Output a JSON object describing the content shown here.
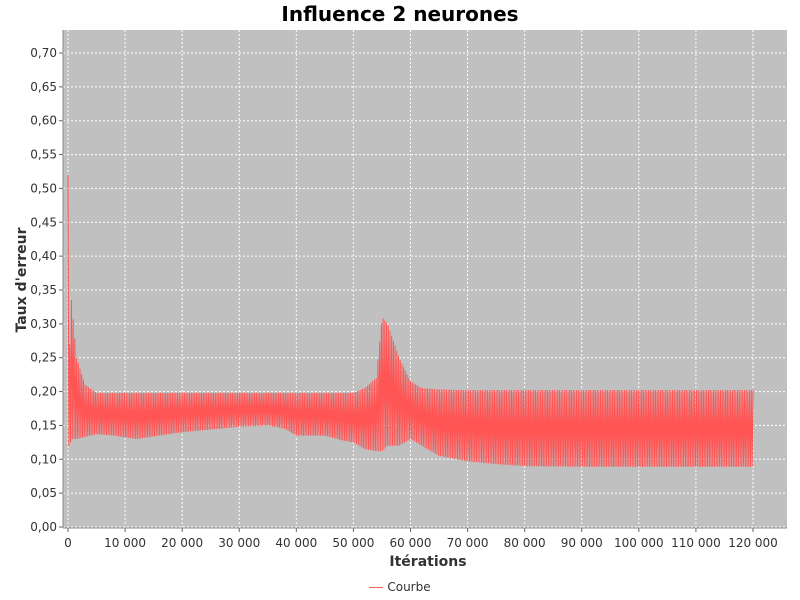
{
  "chart_data": {
    "type": "line",
    "title": "Influence 2 neurones",
    "xlabel": "Itérations",
    "ylabel": "Taux d'erreur",
    "xlim": [
      0,
      125000
    ],
    "ylim": [
      0,
      0.72
    ],
    "x_ticks": [
      "0",
      "10 000",
      "20 000",
      "30 000",
      "40 000",
      "50 000",
      "60 000",
      "70 000",
      "80 000",
      "90 000",
      "100 000",
      "110 000",
      "120 000"
    ],
    "y_ticks": [
      "0,00",
      "0,05",
      "0,10",
      "0,15",
      "0,20",
      "0,25",
      "0,30",
      "0,35",
      "0,40",
      "0,45",
      "0,50",
      "0,55",
      "0,60",
      "0,65",
      "0,70"
    ],
    "grid": true,
    "legend_position": "bottom",
    "plot_background": "#c0c0c0",
    "series": [
      {
        "name": "Courbe",
        "color": "#ff5555",
        "description": "oscillating error rate; values given as lower/upper envelope",
        "envelope": {
          "x": [
            0,
            300,
            600,
            1500,
            3000,
            5000,
            8000,
            12000,
            20000,
            30000,
            35000,
            38000,
            40000,
            45000,
            48000,
            50000,
            52000,
            54000,
            55000,
            56000,
            58000,
            60000,
            62000,
            65000,
            70000,
            75000,
            80000,
            90000,
            100000,
            110000,
            120000
          ],
          "lower": [
            0.12,
            0.12,
            0.13,
            0.13,
            0.133,
            0.137,
            0.135,
            0.13,
            0.14,
            0.148,
            0.15,
            0.145,
            0.135,
            0.135,
            0.128,
            0.125,
            0.115,
            0.112,
            0.112,
            0.12,
            0.12,
            0.13,
            0.12,
            0.105,
            0.097,
            0.093,
            0.09,
            0.089,
            0.089,
            0.089,
            0.089
          ],
          "upper": [
            0.52,
            0.27,
            0.335,
            0.25,
            0.21,
            0.198,
            0.198,
            0.198,
            0.198,
            0.198,
            0.198,
            0.198,
            0.198,
            0.198,
            0.198,
            0.198,
            0.205,
            0.22,
            0.31,
            0.3,
            0.25,
            0.215,
            0.205,
            0.203,
            0.202,
            0.202,
            0.202,
            0.202,
            0.202,
            0.202,
            0.202
          ]
        }
      }
    ]
  }
}
